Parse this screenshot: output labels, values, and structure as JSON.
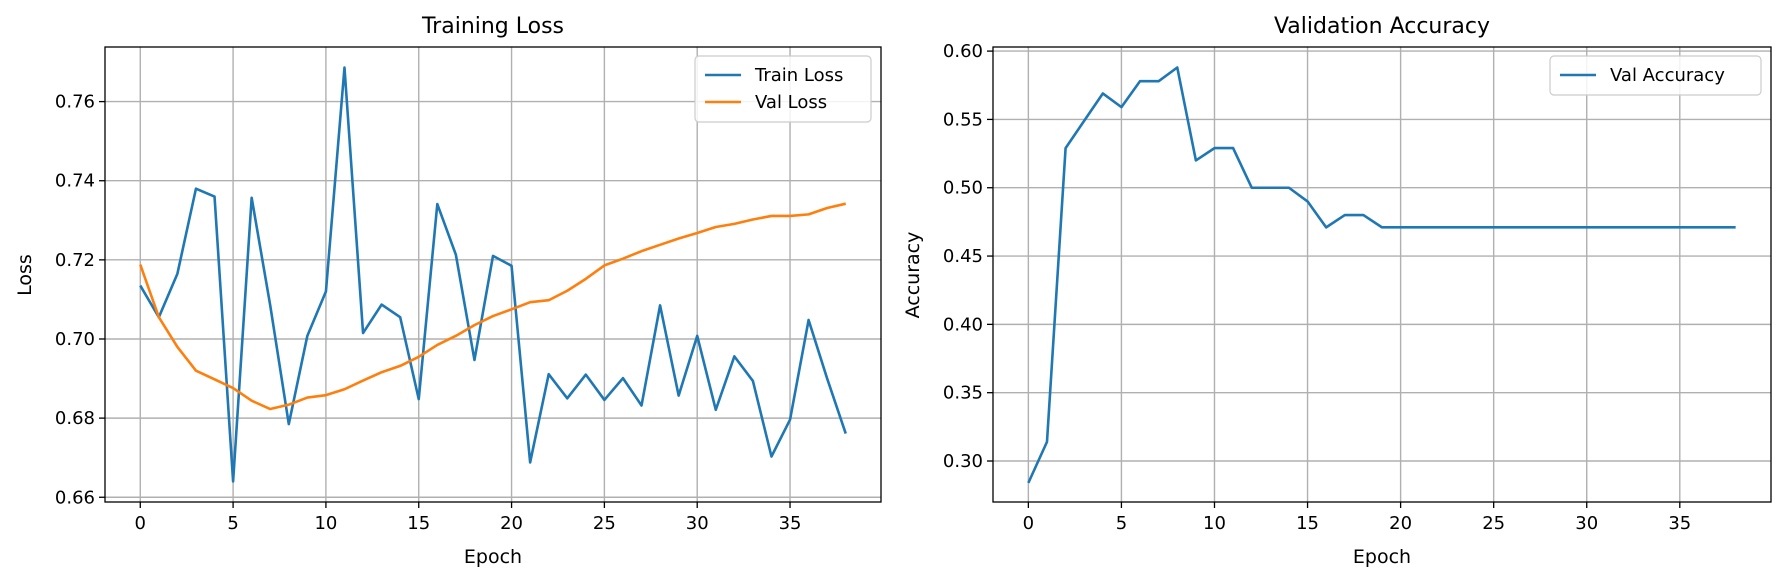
{
  "chart_data": [
    {
      "type": "line",
      "title": "Training Loss",
      "xlabel": "Epoch",
      "ylabel": "Loss",
      "xlim": [
        -1.9,
        39.9
      ],
      "ylim": [
        0.6588,
        0.7738
      ],
      "xticks": [
        0,
        5,
        10,
        15,
        20,
        25,
        30,
        35
      ],
      "yticks": [
        0.66,
        0.68,
        0.7,
        0.72,
        0.74,
        0.76
      ],
      "ytick_labels": [
        "0.66",
        "0.68",
        "0.70",
        "0.72",
        "0.74",
        "0.76"
      ],
      "grid": true,
      "legend": "top-right",
      "x": [
        0,
        1,
        2,
        3,
        4,
        5,
        6,
        7,
        8,
        9,
        10,
        11,
        12,
        13,
        14,
        15,
        16,
        17,
        18,
        19,
        20,
        21,
        22,
        23,
        24,
        25,
        26,
        27,
        28,
        29,
        30,
        31,
        32,
        33,
        34,
        35,
        36,
        37,
        38
      ],
      "series": [
        {
          "name": "Train Loss",
          "color": "#1f77b4",
          "values": [
            0.7135,
            0.7055,
            0.7165,
            0.738,
            0.736,
            0.664,
            0.7357,
            0.7085,
            0.6785,
            0.7008,
            0.712,
            0.7686,
            0.7015,
            0.7087,
            0.7055,
            0.6848,
            0.7341,
            0.7213,
            0.6947,
            0.721,
            0.7185,
            0.6688,
            0.6911,
            0.685,
            0.691,
            0.6846,
            0.6901,
            0.6832,
            0.7085,
            0.6857,
            0.7008,
            0.6821,
            0.6956,
            0.6894,
            0.6703,
            0.6796,
            0.7048,
            0.69,
            0.6761
          ]
        },
        {
          "name": "Val Loss",
          "color": "#ff7f0e",
          "values": [
            0.7188,
            0.7055,
            0.698,
            0.692,
            0.6898,
            0.6876,
            0.6844,
            0.6823,
            0.6834,
            0.6852,
            0.6858,
            0.6873,
            0.6895,
            0.6916,
            0.6932,
            0.6955,
            0.6985,
            0.7008,
            0.7035,
            0.7058,
            0.7075,
            0.7093,
            0.7098,
            0.7122,
            0.7152,
            0.7186,
            0.7203,
            0.7222,
            0.7238,
            0.7254,
            0.7268,
            0.7283,
            0.7291,
            0.7302,
            0.7311,
            0.7311,
            0.7315,
            0.7331,
            0.7342
          ]
        }
      ]
    },
    {
      "type": "line",
      "title": "Validation Accuracy",
      "xlabel": "Epoch",
      "ylabel": "Accuracy",
      "xlim": [
        -1.9,
        39.9
      ],
      "ylim": [
        0.27,
        0.603
      ],
      "xticks": [
        0,
        5,
        10,
        15,
        20,
        25,
        30,
        35
      ],
      "yticks": [
        0.3,
        0.35,
        0.4,
        0.45,
        0.5,
        0.55,
        0.6
      ],
      "ytick_labels": [
        "0.30",
        "0.35",
        "0.40",
        "0.45",
        "0.50",
        "0.55",
        "0.60"
      ],
      "grid": true,
      "legend": "top-right",
      "x": [
        0,
        1,
        2,
        3,
        4,
        5,
        6,
        7,
        8,
        9,
        10,
        11,
        12,
        13,
        14,
        15,
        16,
        17,
        18,
        19,
        20,
        21,
        22,
        23,
        24,
        25,
        26,
        27,
        28,
        29,
        30,
        31,
        32,
        33,
        34,
        35,
        36,
        37,
        38
      ],
      "series": [
        {
          "name": "Val Accuracy",
          "color": "#1f77b4",
          "values": [
            0.284,
            0.314,
            0.529,
            0.549,
            0.569,
            0.559,
            0.578,
            0.578,
            0.588,
            0.52,
            0.529,
            0.529,
            0.5,
            0.5,
            0.5,
            0.49,
            0.471,
            0.48,
            0.48,
            0.471,
            0.471,
            0.471,
            0.471,
            0.471,
            0.471,
            0.471,
            0.471,
            0.471,
            0.471,
            0.471,
            0.471,
            0.471,
            0.471,
            0.471,
            0.471,
            0.471,
            0.471,
            0.471,
            0.471
          ]
        }
      ]
    }
  ]
}
